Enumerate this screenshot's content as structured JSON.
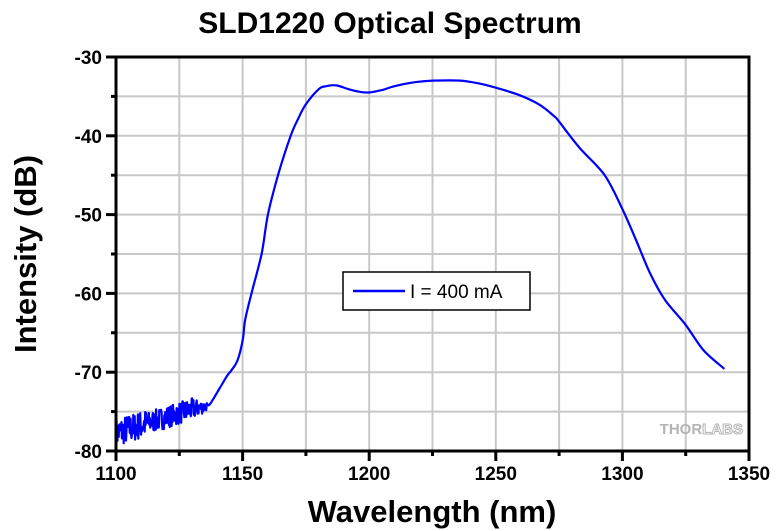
{
  "chart_data": {
    "type": "line",
    "title": "SLD1220 Optical Spectrum",
    "xlabel": "Wavelength (nm)",
    "ylabel": "Intensity (dB)",
    "xlim": [
      1100,
      1350
    ],
    "ylim": [
      -80,
      -30
    ],
    "xticks": [
      1100,
      1150,
      1200,
      1250,
      1300,
      1350
    ],
    "xtick_labels": [
      "1100",
      "1150",
      "1200",
      "1250",
      "1300",
      "1350"
    ],
    "x_minor_step": 25,
    "yticks": [
      -30,
      -40,
      -50,
      -60,
      -70,
      -80
    ],
    "ytick_labels": [
      "-30",
      "-40",
      "-50",
      "-60",
      "-70",
      "-80"
    ],
    "y_minor_step": 5,
    "grid": true,
    "legend": {
      "position": "center",
      "entries": [
        "I = 400 mA"
      ]
    },
    "watermark": {
      "solid": "THOR",
      "outline": "LABS"
    },
    "series": [
      {
        "name": "I = 400 mA",
        "color": "#0000ff",
        "noise": {
          "range": [
            1100,
            1136
          ],
          "amplitude_db": 1.4
        },
        "x": [
          1100,
          1105,
          1110,
          1115,
          1120,
          1125,
          1130,
          1135,
          1137,
          1141,
          1144,
          1145.5,
          1148,
          1150,
          1151,
          1153.5,
          1157.5,
          1160,
          1164,
          1169,
          1172,
          1175,
          1180,
          1183,
          1187,
          1192,
          1196,
          1200,
          1205,
          1210,
          1218,
          1225,
          1236,
          1244,
          1250,
          1259,
          1267,
          1273,
          1275,
          1283,
          1293,
          1300,
          1306,
          1311,
          1317,
          1325,
          1332,
          1340
        ],
        "y": [
          -77.7,
          -77.2,
          -76.7,
          -76.2,
          -75.7,
          -75.2,
          -74.7,
          -74.4,
          -74.1,
          -72.0,
          -70.4,
          -69.8,
          -68.5,
          -66.0,
          -63.4,
          -60.0,
          -55.0,
          -50.0,
          -45.0,
          -40.0,
          -37.8,
          -36.0,
          -34.1,
          -33.7,
          -33.6,
          -34.1,
          -34.4,
          -34.5,
          -34.2,
          -33.7,
          -33.2,
          -33.0,
          -33.0,
          -33.4,
          -33.9,
          -34.8,
          -36.0,
          -37.5,
          -38.2,
          -41.5,
          -45.0,
          -49.3,
          -53.7,
          -57.5,
          -60.9,
          -64.0,
          -67.2,
          -69.5
        ]
      }
    ]
  }
}
